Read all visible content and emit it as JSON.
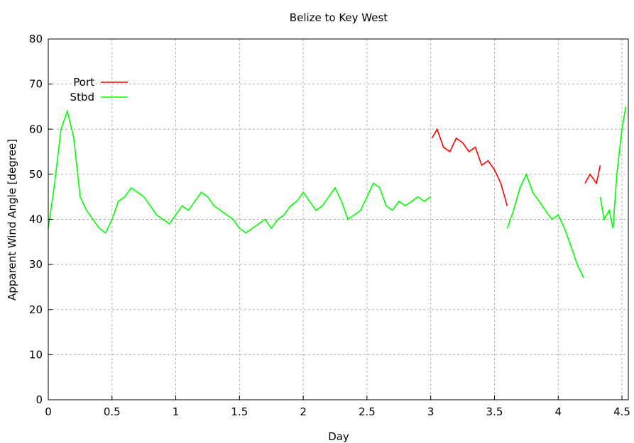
{
  "chart_data": {
    "type": "line",
    "title": "Belize to Key West",
    "xlabel": "Day",
    "ylabel": "Apparent Wind Angle [degree]",
    "xlim": [
      0,
      4.55
    ],
    "ylim": [
      0,
      80
    ],
    "xticks": [
      "0",
      "0.5",
      "1",
      "1.5",
      "2",
      "2.5",
      "3",
      "3.5",
      "4",
      "4.5"
    ],
    "yticks": [
      "0",
      "10",
      "20",
      "30",
      "40",
      "50",
      "60",
      "70",
      "80"
    ],
    "grid": true,
    "legend_position": "top-left",
    "series": [
      {
        "name": "Port",
        "color": "#ff0000",
        "segments": [
          {
            "x": [
              3.01,
              3.05,
              3.1,
              3.15,
              3.2,
              3.25,
              3.3,
              3.35,
              3.4,
              3.45,
              3.5,
              3.55,
              3.6
            ],
            "y": [
              58,
              60,
              56,
              55,
              58,
              57,
              55,
              56,
              52,
              53,
              51,
              48,
              43
            ]
          },
          {
            "x": [
              4.21,
              4.25,
              4.3,
              4.33
            ],
            "y": [
              48,
              50,
              48,
              52
            ]
          }
        ]
      },
      {
        "name": "Stbd",
        "color": "#00ff00",
        "segments": [
          {
            "x": [
              0,
              0.05,
              0.1,
              0.15,
              0.2,
              0.25,
              0.3,
              0.35,
              0.4,
              0.45,
              0.5,
              0.55,
              0.6,
              0.65,
              0.7,
              0.75,
              0.8,
              0.85,
              0.9,
              0.95,
              1.0,
              1.05,
              1.1,
              1.15,
              1.2,
              1.25,
              1.3,
              1.35,
              1.4,
              1.45,
              1.5,
              1.55,
              1.6,
              1.65,
              1.7,
              1.75,
              1.8,
              1.85,
              1.9,
              1.95,
              2.0,
              2.05,
              2.1,
              2.15,
              2.2,
              2.25,
              2.3,
              2.35,
              2.4,
              2.45,
              2.5,
              2.55,
              2.6,
              2.65,
              2.7,
              2.75,
              2.8,
              2.85,
              2.9,
              2.95,
              3.0
            ],
            "y": [
              38,
              48,
              60,
              64,
              58,
              45,
              42,
              40,
              38,
              37,
              40,
              44,
              45,
              47,
              46,
              45,
              43,
              41,
              40,
              39,
              41,
              43,
              42,
              44,
              46,
              45,
              43,
              42,
              41,
              40,
              38,
              37,
              38,
              39,
              40,
              38,
              40,
              41,
              43,
              44,
              46,
              44,
              42,
              43,
              45,
              47,
              44,
              40,
              41,
              42,
              45,
              48,
              47,
              43,
              42,
              44,
              43,
              44,
              45,
              44,
              45
            ]
          },
          {
            "x": [
              3.6,
              3.65,
              3.7,
              3.75,
              3.8,
              3.85,
              3.9,
              3.95,
              4.0,
              4.05,
              4.1,
              4.15,
              4.2
            ],
            "y": [
              38,
              42,
              47,
              50,
              46,
              44,
              42,
              40,
              41,
              38,
              34,
              30,
              27
            ]
          },
          {
            "x": [
              4.33,
              4.36,
              4.4,
              4.43,
              4.46,
              4.5,
              4.53
            ],
            "y": [
              45,
              40,
              42,
              38,
              50,
              60,
              65
            ]
          }
        ]
      }
    ]
  }
}
